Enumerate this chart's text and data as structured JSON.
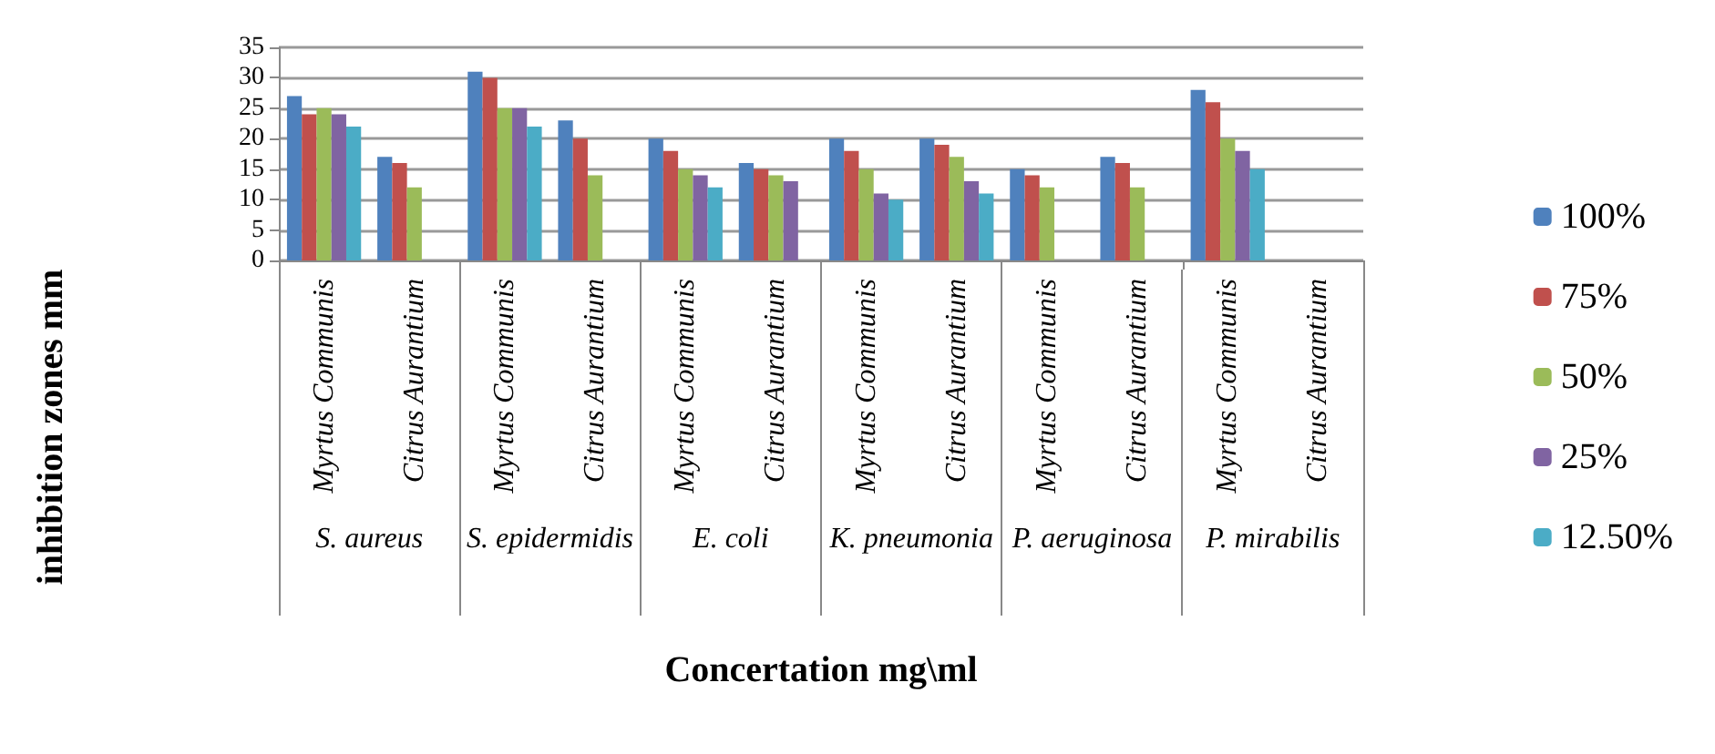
{
  "chart_data": {
    "type": "bar",
    "xlabel": "Concertation mg\\ml",
    "ylabel": "inhibition zones mm",
    "categories": [
      "Myrtus Communis",
      "Citrus Aurantium",
      "Myrtus Communis",
      "Citrus Aurantium",
      "Myrtus Communis",
      "Citrus Aurantium",
      "Myrtus Communis",
      "Citrus Aurantium",
      "Myrtus Communis",
      "Citrus Aurantium",
      "Myrtus Communis",
      "Citrus Aurantium"
    ],
    "annotations": [
      "S. aureus",
      "S. epidermidis",
      "E. coli",
      "K. pneumonia",
      "P. aeruginosa",
      "P. mirabilis"
    ],
    "series": [
      {
        "name": "100%",
        "color": "#4f81bd",
        "values": [
          27,
          17,
          31,
          23,
          20,
          16,
          20,
          20,
          15,
          17,
          28,
          0
        ]
      },
      {
        "name": "75%",
        "color": "#c0504d",
        "values": [
          24,
          16,
          30,
          20,
          18,
          15,
          18,
          19,
          14,
          16,
          26,
          0
        ]
      },
      {
        "name": "50%",
        "color": "#9bbb59",
        "values": [
          25,
          12,
          25,
          14,
          15,
          14,
          15,
          17,
          12,
          12,
          20,
          0
        ]
      },
      {
        "name": "25%",
        "color": "#8064a2",
        "values": [
          24,
          0,
          25,
          0,
          14,
          13,
          11,
          13,
          0,
          0,
          18,
          0
        ]
      },
      {
        "name": "12.50%",
        "color": "#4bacc6",
        "values": [
          22,
          0,
          22,
          0,
          12,
          0,
          10,
          11,
          0,
          0,
          15,
          0
        ]
      }
    ],
    "ylim": [
      0,
      35
    ],
    "yticks": [
      0,
      5,
      10,
      15,
      20,
      25,
      30,
      35
    ],
    "grid": "y",
    "legend": "right"
  }
}
